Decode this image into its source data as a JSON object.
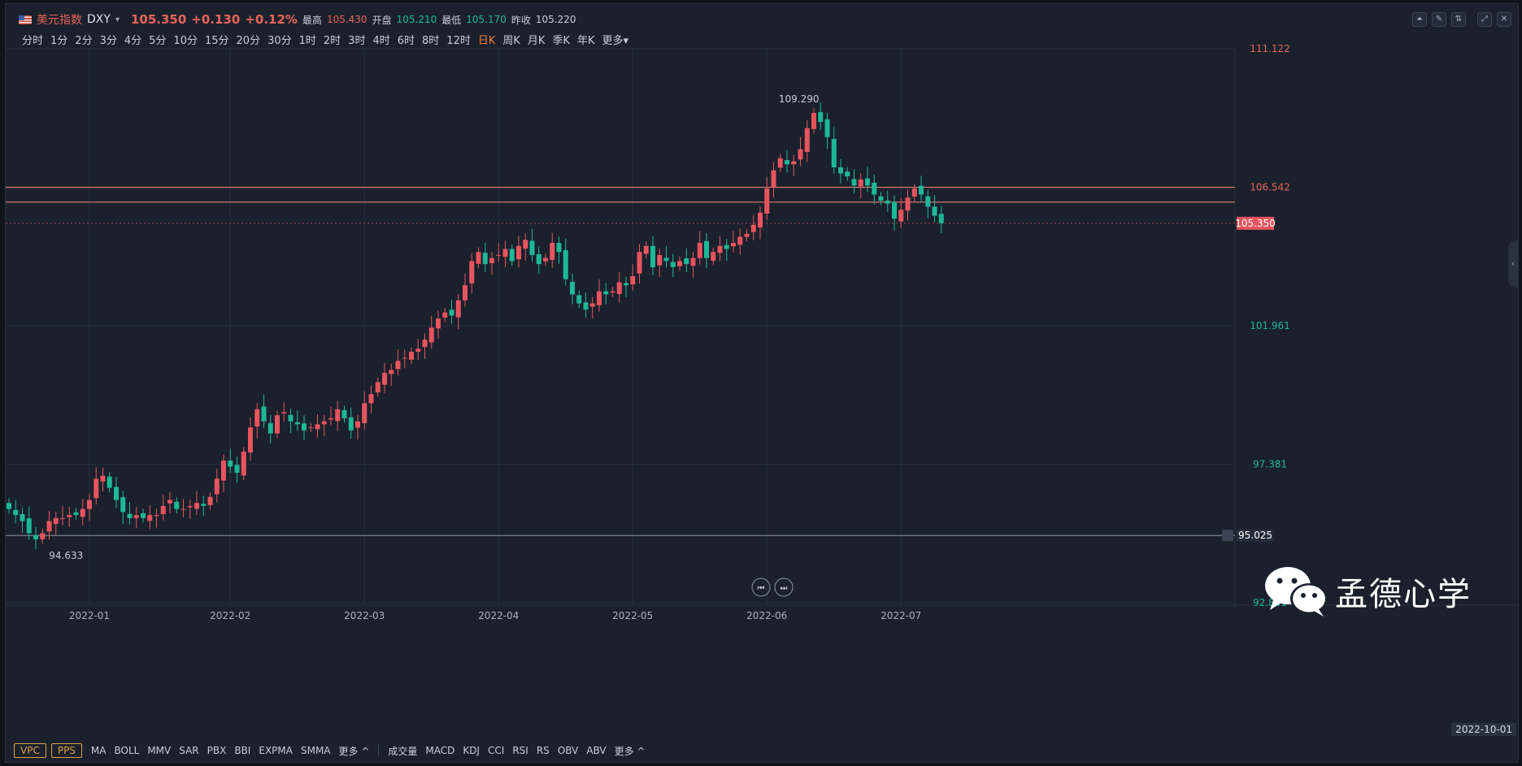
{
  "header": {
    "symbol_name": "美元指数",
    "symbol_code": "DXY",
    "last": "105.350",
    "change": "+0.130",
    "change_pct": "+0.12%",
    "high_label": "最高",
    "high": "105.430",
    "open_label": "开盘",
    "open": "105.210",
    "low_label": "最低",
    "low": "105.170",
    "prev_label": "昨收",
    "prev": "105.220"
  },
  "timeframes": [
    "分时",
    "1分",
    "2分",
    "3分",
    "4分",
    "5分",
    "10分",
    "15分",
    "20分",
    "30分",
    "1时",
    "2时",
    "3时",
    "4时",
    "6时",
    "8时",
    "12时",
    "日K",
    "周K",
    "月K",
    "季K",
    "年K",
    "更多"
  ],
  "active_timeframe": "日K",
  "bottom": {
    "boxes": [
      "VPC",
      "PPS"
    ],
    "main_indicators": [
      "MA",
      "BOLL",
      "MMV",
      "SAR",
      "PBX",
      "BBI",
      "EXPMA",
      "SMMA",
      "更多 ^"
    ],
    "sub_indicators": [
      "成交量",
      "MACD",
      "KDJ",
      "CCI",
      "RSI",
      "RS",
      "OBV",
      "ABV",
      "更多 ^"
    ]
  },
  "watermark": "孟德心学",
  "cursor_date": "2022-10-01",
  "colors": {
    "up": "#e8545e",
    "down": "#1db896",
    "bg": "#1a212d",
    "grid": "#263040",
    "accent": "#f07a3a"
  },
  "chart_data": {
    "type": "candlestick",
    "title": "",
    "y_ticks": [
      {
        "value": 111.122,
        "label": "111.122",
        "color": "#e8645a"
      },
      {
        "value": 106.542,
        "label": "106.542",
        "color": "#e8645a"
      },
      {
        "value": 101.961,
        "label": "101.961",
        "color": "#1db896"
      },
      {
        "value": 97.381,
        "label": "97.381",
        "color": "#1db896"
      },
      {
        "value": 92.801,
        "label": "92.801",
        "color": "#1db896"
      }
    ],
    "ylim": [
      92.801,
      111.122
    ],
    "last_price_tag": {
      "value": 105.35,
      "label": "105.350"
    },
    "line_tag": {
      "value": 95.025,
      "label": "95.025"
    },
    "horizontal_lines": [
      106.54,
      106.05
    ],
    "x_labels": [
      {
        "label": "2022-01",
        "index": 12
      },
      {
        "label": "2022-02",
        "index": 33
      },
      {
        "label": "2022-03",
        "index": 53
      },
      {
        "label": "2022-04",
        "index": 73
      },
      {
        "label": "2022-05",
        "index": 93
      },
      {
        "label": "2022-06",
        "index": 113
      },
      {
        "label": "2022-07",
        "index": 133
      }
    ],
    "annotations": [
      {
        "label": "109.290",
        "value": 109.29,
        "index": 122,
        "side": "left"
      },
      {
        "label": "94.633",
        "value": 94.633,
        "index": 5,
        "side": "right"
      }
    ],
    "closes": [
      95.9,
      95.7,
      95.5,
      95.1,
      94.9,
      95.1,
      95.5,
      95.6,
      95.6,
      95.7,
      95.7,
      95.9,
      96.2,
      96.9,
      97.0,
      96.6,
      96.2,
      95.8,
      95.6,
      95.7,
      95.6,
      95.7,
      95.7,
      96.0,
      96.2,
      95.9,
      95.9,
      96.0,
      96.1,
      96.0,
      96.3,
      96.9,
      97.5,
      97.3,
      97.1,
      97.8,
      98.6,
      99.2,
      98.8,
      98.4,
      99.0,
      99.1,
      98.8,
      98.7,
      98.5,
      98.6,
      98.7,
      98.8,
      98.9,
      99.2,
      98.9,
      98.5,
      98.8,
      99.4,
      99.7,
      100.1,
      100.4,
      100.5,
      100.8,
      100.9,
      101.1,
      101.2,
      101.5,
      101.9,
      102.2,
      102.4,
      102.3,
      102.8,
      103.3,
      104.1,
      104.4,
      104.0,
      104.2,
      104.3,
      104.5,
      104.1,
      104.6,
      104.8,
      104.3,
      104.0,
      104.2,
      104.7,
      104.4,
      103.5,
      103.0,
      102.7,
      102.5,
      102.7,
      103.1,
      103.0,
      103.1,
      103.4,
      103.3,
      103.6,
      104.4,
      104.6,
      103.9,
      104.3,
      104.1,
      103.9,
      104.1,
      104.0,
      104.2,
      104.7,
      104.2,
      104.4,
      104.6,
      104.5,
      104.7,
      104.9,
      105.0,
      105.3,
      105.7,
      106.5,
      107.1,
      107.5,
      107.3,
      107.4,
      107.8,
      108.5,
      109.0,
      108.7,
      108.2,
      107.2,
      107.0,
      106.9,
      106.6,
      106.8,
      106.6,
      106.3,
      106.1,
      106.0,
      105.5,
      105.8,
      106.2,
      106.5,
      106.3,
      105.9,
      105.6,
      105.35
    ]
  }
}
